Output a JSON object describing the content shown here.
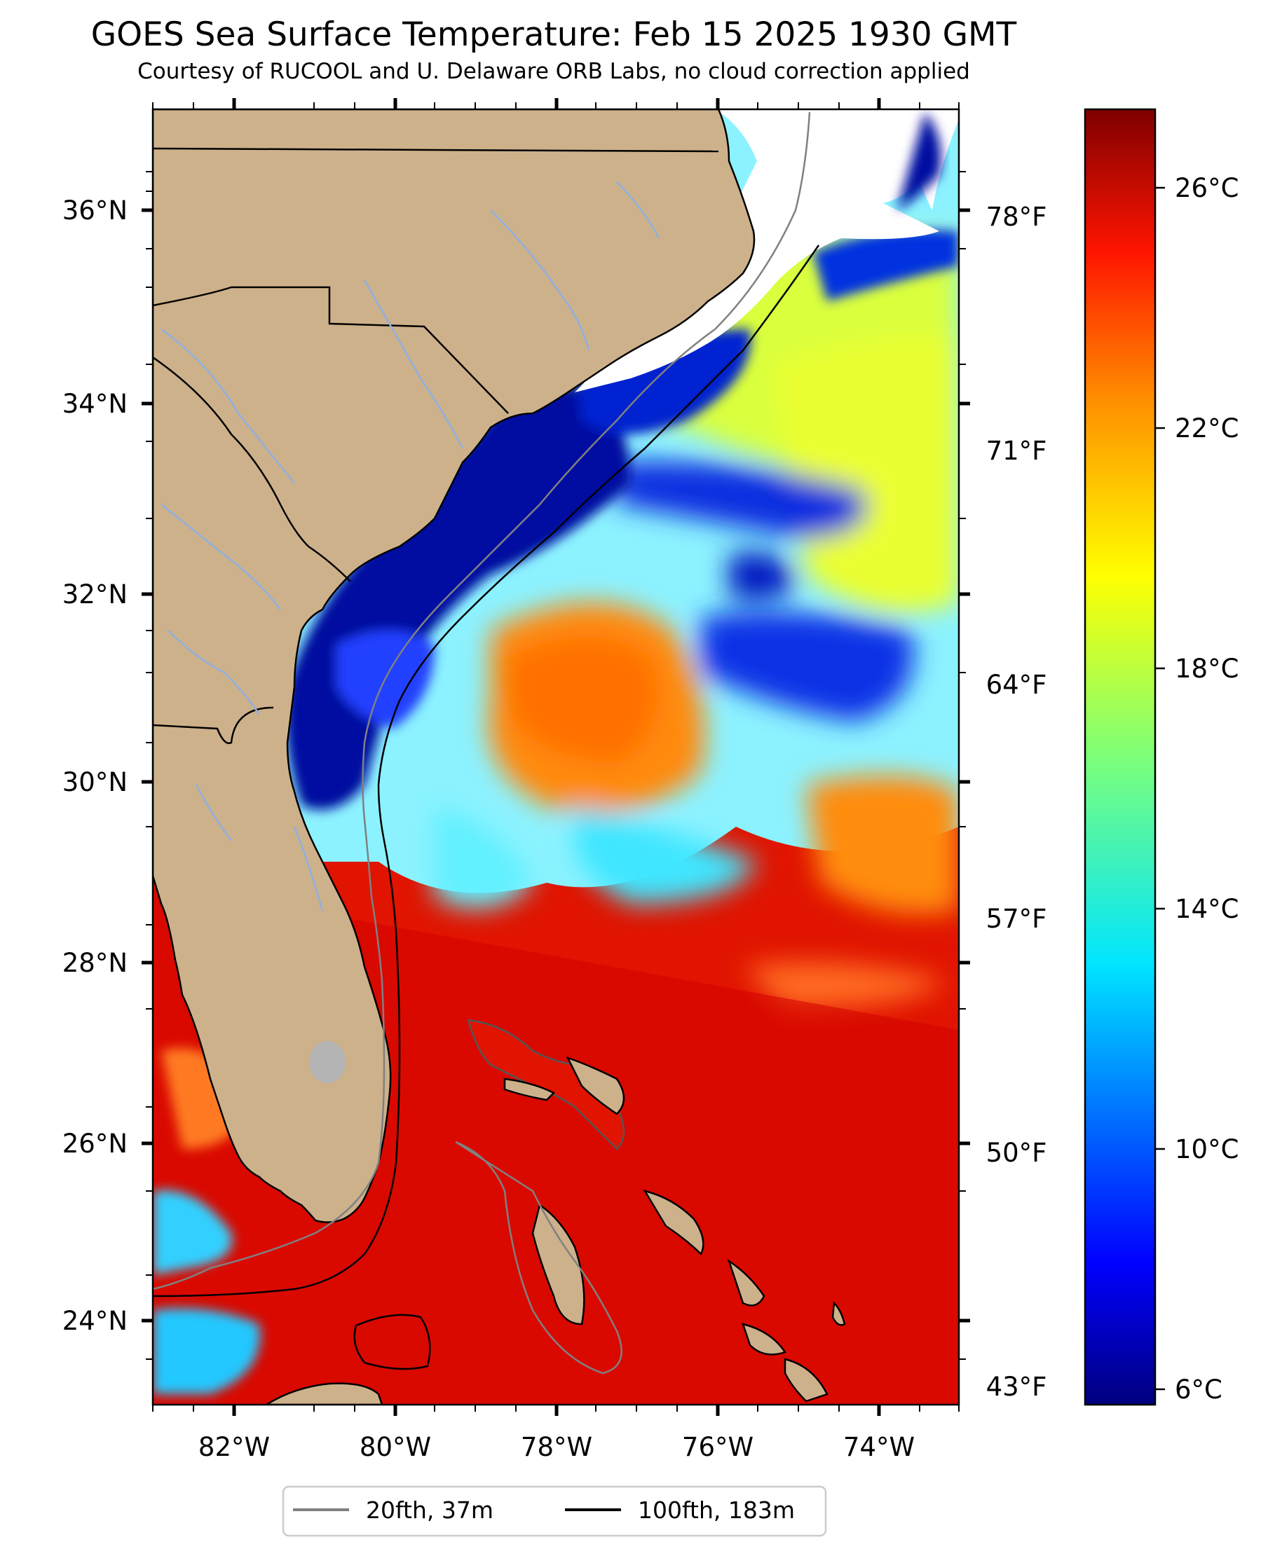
{
  "title": "GOES Sea Surface Temperature: Feb 15 2025 1930 GMT",
  "subtitle": "Courtesy of RUCOOL and U. Delaware ORB Labs, no cloud correction applied",
  "map": {
    "lat_labels": [
      "36°N",
      "34°N",
      "32°N",
      "30°N",
      "28°N",
      "26°N",
      "24°N"
    ],
    "lon_labels": [
      "82°W",
      "80°W",
      "78°W",
      "76°W",
      "74°W"
    ],
    "fahrenheit_labels": [
      "78°F",
      "71°F",
      "64°F",
      "57°F",
      "50°F",
      "43°F"
    ],
    "land_color": "#cdb18b",
    "no_data_color": "#ffffff",
    "river_color": "#8fb0e0"
  },
  "colorbar": {
    "labels": [
      "26°C",
      "22°C",
      "18°C",
      "14°C",
      "10°C",
      "6°C"
    ],
    "colormap": "jet"
  },
  "legend": {
    "items": [
      {
        "label": "20fth, 37m",
        "color": "#808080"
      },
      {
        "label": "100fth, 183m",
        "color": "#000000"
      }
    ]
  }
}
